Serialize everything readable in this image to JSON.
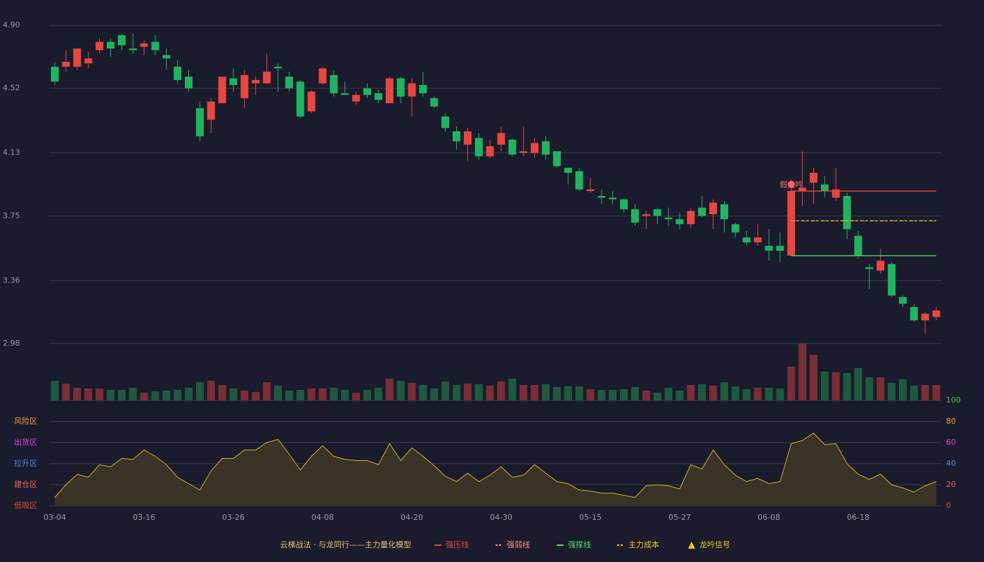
{
  "chart_data": [
    {
      "type": "candlestick",
      "categories": [
        "03-04",
        null,
        null,
        null,
        null,
        null,
        null,
        null,
        "03-16",
        null,
        null,
        null,
        null,
        null,
        null,
        null,
        "03-26",
        null,
        null,
        null,
        null,
        null,
        null,
        null,
        "04-08",
        null,
        null,
        null,
        null,
        null,
        null,
        null,
        "04-20",
        null,
        null,
        null,
        null,
        null,
        null,
        null,
        "04-30",
        null,
        null,
        null,
        null,
        null,
        null,
        null,
        "05-15",
        null,
        null,
        null,
        null,
        null,
        null,
        null,
        "05-27",
        null,
        null,
        null,
        null,
        null,
        null,
        null,
        "06-08",
        null,
        null,
        null,
        null,
        null,
        null,
        null,
        "06-18",
        null,
        null,
        null,
        null,
        null,
        null,
        null
      ],
      "open": [
        4.65,
        4.65,
        4.65,
        4.67,
        4.75,
        4.8,
        4.84,
        4.76,
        4.77,
        4.8,
        4.72,
        4.65,
        4.59,
        4.4,
        4.33,
        4.43,
        4.58,
        4.46,
        4.55,
        4.55,
        4.65,
        4.59,
        4.56,
        4.38,
        4.55,
        4.6,
        4.49,
        4.44,
        4.52,
        4.49,
        4.43,
        4.58,
        4.47,
        4.54,
        4.46,
        4.35,
        4.26,
        4.18,
        4.22,
        4.11,
        4.18,
        4.21,
        4.13,
        4.13,
        4.2,
        4.14,
        4.04,
        4.02,
        3.9,
        3.87,
        3.86,
        3.85,
        3.79,
        3.75,
        3.79,
        3.74,
        3.73,
        3.7,
        3.8,
        3.76,
        3.82,
        3.7,
        3.62,
        3.59,
        3.57,
        3.57,
        3.51,
        3.9,
        3.95,
        3.94,
        3.86,
        3.87,
        3.63,
        3.44,
        3.42,
        3.46,
        3.26,
        3.2,
        3.12,
        3.14
      ],
      "high": [
        4.68,
        4.75,
        4.76,
        4.74,
        4.82,
        4.82,
        4.85,
        4.85,
        4.81,
        4.84,
        4.76,
        4.69,
        4.63,
        4.44,
        4.46,
        4.59,
        4.64,
        4.63,
        4.59,
        4.73,
        4.67,
        4.62,
        4.57,
        4.51,
        4.65,
        4.63,
        4.56,
        4.5,
        4.55,
        4.51,
        4.59,
        4.59,
        4.58,
        4.62,
        4.47,
        4.37,
        4.29,
        4.28,
        4.25,
        4.21,
        4.29,
        4.22,
        4.29,
        4.22,
        4.23,
        4.14,
        4.04,
        4.04,
        3.98,
        3.91,
        3.9,
        3.85,
        3.82,
        3.78,
        3.8,
        3.8,
        3.77,
        3.8,
        3.87,
        3.85,
        3.84,
        3.71,
        3.66,
        3.7,
        3.67,
        3.65,
        3.97,
        4.14,
        4.04,
        3.99,
        4.04,
        3.89,
        3.66,
        3.46,
        3.55,
        3.47,
        3.27,
        3.22,
        3.17,
        3.2
      ],
      "low": [
        4.54,
        4.62,
        4.63,
        4.64,
        4.73,
        4.71,
        4.75,
        4.73,
        4.72,
        4.72,
        4.63,
        4.55,
        4.5,
        4.2,
        4.25,
        4.43,
        4.5,
        4.4,
        4.48,
        4.55,
        4.5,
        4.5,
        4.34,
        4.37,
        4.54,
        4.47,
        4.48,
        4.42,
        4.46,
        4.43,
        4.43,
        4.43,
        4.35,
        4.47,
        4.4,
        4.26,
        4.15,
        4.08,
        4.09,
        4.1,
        4.14,
        4.11,
        4.11,
        4.1,
        4.09,
        4.04,
        3.94,
        3.9,
        3.89,
        3.82,
        3.82,
        3.77,
        3.69,
        3.67,
        3.7,
        3.69,
        3.67,
        3.68,
        3.74,
        3.67,
        3.65,
        3.62,
        3.57,
        3.57,
        3.48,
        3.47,
        3.51,
        3.81,
        3.82,
        3.86,
        3.84,
        3.61,
        3.49,
        3.31,
        3.4,
        3.26,
        3.2,
        3.11,
        3.04,
        3.12
      ],
      "close": [
        4.56,
        4.68,
        4.76,
        4.7,
        4.8,
        4.76,
        4.78,
        4.75,
        4.79,
        4.75,
        4.7,
        4.57,
        4.52,
        4.23,
        4.44,
        4.59,
        4.54,
        4.6,
        4.57,
        4.62,
        4.64,
        4.52,
        4.35,
        4.5,
        4.64,
        4.49,
        4.48,
        4.48,
        4.48,
        4.45,
        4.58,
        4.47,
        4.55,
        4.49,
        4.41,
        4.28,
        4.2,
        4.26,
        4.11,
        4.17,
        4.25,
        4.12,
        4.14,
        4.19,
        4.12,
        4.05,
        4.01,
        3.91,
        3.91,
        3.86,
        3.85,
        3.79,
        3.71,
        3.76,
        3.75,
        3.73,
        3.7,
        3.78,
        3.75,
        3.83,
        3.73,
        3.65,
        3.59,
        3.62,
        3.54,
        3.54,
        3.9,
        3.92,
        4.01,
        3.9,
        3.91,
        3.67,
        3.51,
        3.43,
        3.48,
        3.27,
        3.22,
        3.12,
        3.16,
        3.18
      ],
      "up_color": "#e8473f",
      "down_color": "#21b45f",
      "ylim": [
        2.98,
        4.9
      ],
      "yticks": [
        {
          "value": 4.9,
          "label": "4.90"
        },
        4.52,
        4.13,
        3.75,
        3.36,
        2.98
      ],
      "grid": true,
      "series": [
        {
          "name": "强压线",
          "color": "#e8473f",
          "dash": "none",
          "values": [
            null,
            null,
            null,
            null,
            null,
            null,
            null,
            null,
            null,
            null,
            null,
            null,
            null,
            null,
            null,
            null,
            null,
            null,
            null,
            null,
            null,
            null,
            null,
            null,
            null,
            null,
            null,
            null,
            null,
            null,
            null,
            null,
            null,
            null,
            null,
            null,
            null,
            null,
            null,
            null,
            null,
            null,
            null,
            null,
            null,
            null,
            null,
            null,
            null,
            null,
            null,
            null,
            null,
            null,
            null,
            null,
            null,
            null,
            null,
            null,
            null,
            null,
            null,
            null,
            null,
            null,
            3.9,
            3.9,
            3.9,
            3.9,
            3.9,
            3.9,
            3.9,
            3.9,
            3.9,
            3.9,
            3.9,
            3.9,
            3.9,
            3.9
          ]
        },
        {
          "name": "强弱线",
          "color": "#ff8a8a",
          "dash": "6 3 2 3",
          "values": [
            null,
            null,
            null,
            null,
            null,
            null,
            null,
            null,
            null,
            null,
            null,
            null,
            null,
            null,
            null,
            null,
            null,
            null,
            null,
            null,
            null,
            null,
            null,
            null,
            null,
            null,
            null,
            null,
            null,
            null,
            null,
            null,
            null,
            null,
            null,
            null,
            null,
            null,
            null,
            null,
            null,
            null,
            null,
            null,
            null,
            null,
            null,
            null,
            null,
            null,
            null,
            null,
            null,
            null,
            null,
            null,
            null,
            null,
            null,
            null,
            null,
            null,
            null,
            null,
            null,
            null,
            3.72,
            3.72,
            3.72,
            3.72,
            3.72,
            3.72,
            3.72,
            3.72,
            3.72,
            3.72,
            3.72,
            3.72,
            3.72,
            3.72
          ]
        },
        {
          "name": "强撑线",
          "color": "#4cd964",
          "dash": "none",
          "values": [
            null,
            null,
            null,
            null,
            null,
            null,
            null,
            null,
            null,
            null,
            null,
            null,
            null,
            null,
            null,
            null,
            null,
            null,
            null,
            null,
            null,
            null,
            null,
            null,
            null,
            null,
            null,
            null,
            null,
            null,
            null,
            null,
            null,
            null,
            null,
            null,
            null,
            null,
            null,
            null,
            null,
            null,
            null,
            null,
            null,
            null,
            null,
            null,
            null,
            null,
            null,
            null,
            null,
            null,
            null,
            null,
            null,
            null,
            null,
            null,
            null,
            null,
            null,
            null,
            null,
            null,
            3.51,
            3.51,
            3.51,
            3.51,
            3.51,
            3.51,
            3.51,
            3.51,
            3.51,
            3.51,
            3.51,
            3.51,
            3.51,
            3.51
          ]
        },
        {
          "name": "主力成本",
          "color": "#f5c518",
          "dash": "4 3",
          "values": [
            null,
            null,
            null,
            null,
            null,
            null,
            null,
            null,
            null,
            null,
            null,
            null,
            null,
            null,
            null,
            null,
            null,
            null,
            null,
            null,
            null,
            null,
            null,
            null,
            null,
            null,
            null,
            null,
            null,
            null,
            null,
            null,
            null,
            null,
            null,
            null,
            null,
            null,
            null,
            null,
            null,
            null,
            null,
            null,
            null,
            null,
            null,
            null,
            null,
            null,
            null,
            null,
            null,
            null,
            null,
            null,
            null,
            null,
            null,
            null,
            null,
            null,
            null,
            null,
            null,
            null,
            3.72,
            3.72,
            3.72,
            3.72,
            3.72,
            3.72,
            3.72,
            3.72,
            3.72,
            3.72,
            3.72,
            3.72,
            3.72,
            3.72
          ]
        }
      ],
      "signals": {
        "name": "龙吟信号",
        "color": "#f5c518",
        "points": [
          {
            "index": 66,
            "value": 3.94,
            "label": "假龙吟",
            "color": "#ff7070"
          }
        ]
      },
      "legend_title": "云梯战法 · 与龙同行——主力量化模型"
    },
    {
      "type": "bar",
      "values": [
        28,
        24,
        18,
        17,
        17,
        15,
        15,
        18,
        11,
        13,
        14,
        15,
        18,
        26,
        28,
        22,
        17,
        14,
        12,
        26,
        21,
        14,
        15,
        17,
        17,
        18,
        15,
        11,
        15,
        18,
        31,
        28,
        25,
        22,
        17,
        27,
        22,
        24,
        23,
        21,
        27,
        31,
        22,
        22,
        23,
        19,
        20,
        20,
        16,
        15,
        15,
        16,
        19,
        14,
        11,
        18,
        14,
        22,
        23,
        21,
        26,
        20,
        16,
        18,
        18,
        17,
        48,
        81,
        65,
        41,
        40,
        39,
        46,
        33,
        33,
        25,
        30,
        21,
        22,
        22
      ],
      "up_color": "#7a2e35",
      "down_color": "#1f5a40"
    },
    {
      "type": "line",
      "series": [
        {
          "color": "#d4b21c",
          "fill": "#3a3428",
          "values": [
            8,
            20,
            30,
            27,
            39,
            37,
            45,
            44,
            53,
            47,
            39,
            27,
            21,
            15,
            33,
            45,
            45,
            53,
            53,
            60,
            63,
            49,
            34,
            47,
            57,
            47,
            44,
            43,
            43,
            39,
            59,
            43,
            55,
            47,
            38,
            28,
            23,
            31,
            23,
            29,
            37,
            27,
            29,
            39,
            31,
            23,
            21,
            15,
            14,
            12,
            12,
            10,
            8,
            19,
            20,
            19,
            16,
            39,
            35,
            53,
            39,
            29,
            23,
            26,
            21,
            23,
            59,
            62,
            69,
            58,
            59,
            40,
            30,
            25,
            30,
            20,
            17,
            13,
            19,
            23
          ]
        }
      ],
      "ylim": [
        0,
        100
      ],
      "yticks": [
        0,
        20,
        40,
        60,
        80,
        100
      ],
      "ytick_colors": [
        "#e8473f",
        "#ff5a5a",
        "#4d8ef0",
        "#e040e0",
        "#f0a030",
        "#3ccf3c"
      ],
      "zones": [
        {
          "label": "低吸区",
          "value": 0,
          "color": "#e8473f"
        },
        {
          "label": "建仓区",
          "value": 20,
          "color": "#ff5a5a"
        },
        {
          "label": "拉升区",
          "value": 40,
          "color": "#4d8ef0"
        },
        {
          "label": "出货区",
          "value": 60,
          "color": "#e040e0"
        },
        {
          "label": "风险区",
          "value": 80,
          "color": "#f0a030"
        }
      ],
      "grid": true
    }
  ]
}
